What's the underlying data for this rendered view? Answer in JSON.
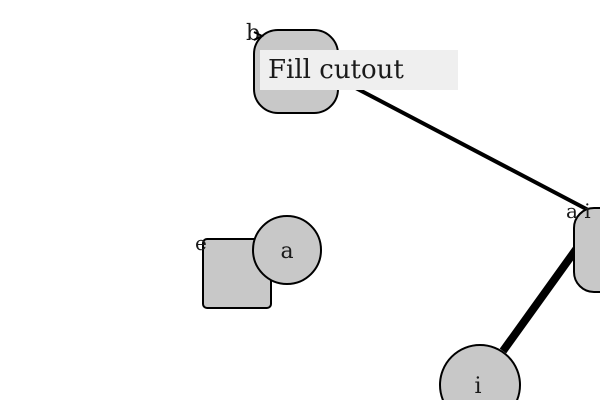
{
  "tooltip": {
    "text": "Fill cutout"
  },
  "nodes": {
    "top_rounded": {
      "corner_label": "b"
    },
    "square": {
      "corner_label": "e"
    },
    "circle_a": {
      "label": "a"
    },
    "right_node": {
      "corner_label": "a i"
    },
    "circle_i": {
      "label": "i"
    }
  },
  "colors": {
    "node_fill": "#c8c8c8",
    "stroke": "#000000",
    "tooltip_bg": "#efefef",
    "background": "#ffffff"
  }
}
